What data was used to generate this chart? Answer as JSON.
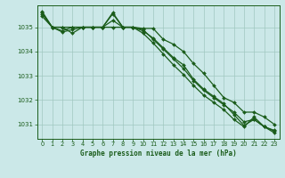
{
  "title": "Graphe pression niveau de la mer (hPa)",
  "background_color": "#cbe8e8",
  "grid_color": "#a0c8c0",
  "line_color": "#1a5c1a",
  "marker_color": "#1a5c1a",
  "xlim": [
    -0.5,
    23.5
  ],
  "ylim": [
    1030.4,
    1035.9
  ],
  "yticks": [
    1031,
    1032,
    1033,
    1034,
    1035
  ],
  "xticks": [
    0,
    1,
    2,
    3,
    4,
    5,
    6,
    7,
    8,
    9,
    10,
    11,
    12,
    13,
    14,
    15,
    16,
    17,
    18,
    19,
    20,
    21,
    22,
    23
  ],
  "series": [
    [
      1035.65,
      1035.0,
      1035.0,
      1035.0,
      1035.0,
      1035.0,
      1035.0,
      1035.0,
      1035.0,
      1035.0,
      1034.95,
      1034.95,
      1034.5,
      1034.3,
      1034.0,
      1033.5,
      1033.1,
      1032.6,
      1032.1,
      1031.9,
      1031.5,
      1031.5,
      1031.3,
      1031.0
    ],
    [
      1035.55,
      1035.0,
      1034.85,
      1035.0,
      1035.0,
      1035.0,
      1035.0,
      1035.55,
      1035.0,
      1035.0,
      1034.85,
      1034.55,
      1034.15,
      1033.75,
      1033.45,
      1032.85,
      1032.45,
      1032.15,
      1031.85,
      1031.4,
      1030.95,
      1031.2,
      1030.9,
      1030.72
    ],
    [
      1035.45,
      1035.0,
      1035.0,
      1034.75,
      1035.0,
      1035.0,
      1035.0,
      1035.28,
      1035.0,
      1035.0,
      1034.75,
      1034.35,
      1033.9,
      1033.45,
      1033.05,
      1032.6,
      1032.2,
      1031.9,
      1031.6,
      1031.2,
      1030.9,
      1031.3,
      1030.9,
      1030.65
    ],
    [
      1035.6,
      1035.0,
      1034.8,
      1034.9,
      1035.0,
      1035.0,
      1035.0,
      1035.6,
      1035.0,
      1035.0,
      1034.9,
      1034.5,
      1034.1,
      1033.7,
      1033.3,
      1032.8,
      1032.4,
      1032.1,
      1031.8,
      1031.5,
      1031.1,
      1031.2,
      1030.9,
      1030.75
    ]
  ]
}
